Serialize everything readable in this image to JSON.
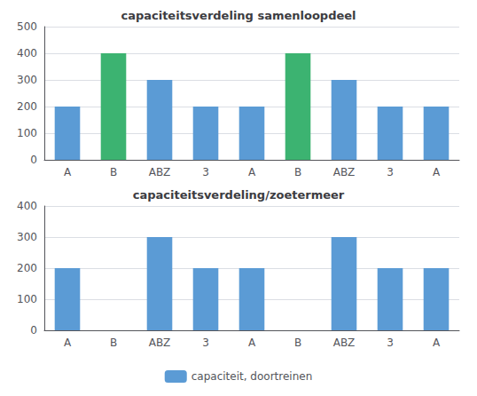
{
  "chart_data": [
    {
      "type": "bar",
      "title": "capaciteitsverdeling samenloopdeel",
      "categories": [
        "A",
        "B",
        "ABZ",
        "3",
        "A",
        "B",
        "ABZ",
        "3",
        "A"
      ],
      "values": [
        200,
        400,
        300,
        200,
        200,
        400,
        300,
        200,
        200
      ],
      "colors": [
        "#5B9BD5",
        "#3CB371",
        "#5B9BD5",
        "#5B9BD5",
        "#5B9BD5",
        "#3CB371",
        "#5B9BD5",
        "#5B9BD5",
        "#5B9BD5"
      ],
      "ylim": [
        0,
        500
      ],
      "yticks": [
        0,
        100,
        200,
        300,
        400,
        500
      ],
      "grid": true
    },
    {
      "type": "bar",
      "title": "capaciteitsverdeling/zoetermeer",
      "categories": [
        "A",
        "B",
        "ABZ",
        "3",
        "A",
        "B",
        "ABZ",
        "3",
        "A"
      ],
      "series": [
        {
          "name": "capaciteit, doortreinen",
          "color": "#5B9BD5",
          "values": [
            200,
            0,
            300,
            200,
            200,
            0,
            300,
            200,
            200
          ]
        }
      ],
      "ylim": [
        0,
        400
      ],
      "yticks": [
        0,
        100,
        200,
        300,
        400
      ],
      "grid": true,
      "legend": "bottom"
    }
  ]
}
